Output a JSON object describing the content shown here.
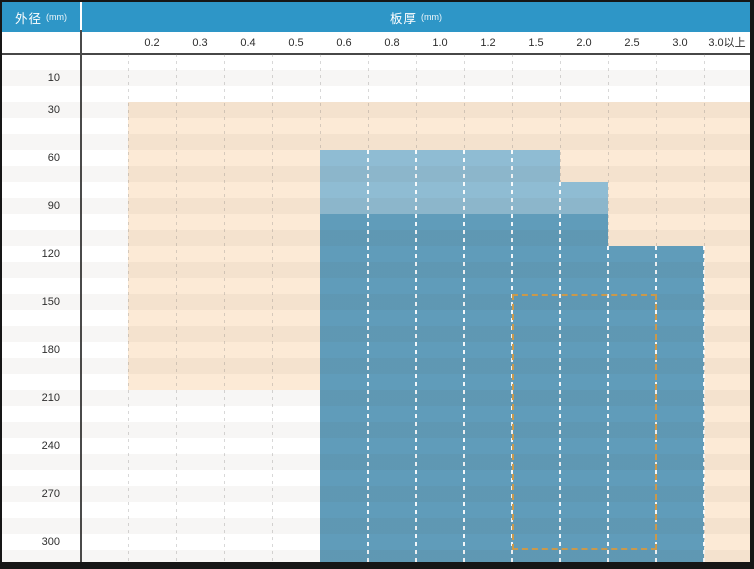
{
  "header": {
    "row_axis": {
      "label": "外径",
      "unit": "(mm)"
    },
    "col_axis": {
      "label": "板厚",
      "unit": "(mm)"
    }
  },
  "columns": [
    "0.2",
    "0.3",
    "0.4",
    "0.5",
    "0.6",
    "0.8",
    "1.0",
    "1.2",
    "1.5",
    "2.0",
    "2.5",
    "3.0",
    "3.0以上"
  ],
  "row_labels": [
    {
      "text": "10",
      "row": 2
    },
    {
      "text": "30",
      "row": 4
    },
    {
      "text": "60",
      "row": 7
    },
    {
      "text": "90",
      "row": 10
    },
    {
      "text": "120",
      "row": 13
    },
    {
      "text": "150",
      "row": 16
    },
    {
      "text": "180",
      "row": 19
    },
    {
      "text": "210",
      "row": 22
    },
    {
      "text": "240",
      "row": 25
    },
    {
      "text": "270",
      "row": 28
    },
    {
      "text": "300",
      "row": 31
    }
  ],
  "colors": {
    "header_bg": "#2e96c7",
    "extended_orange": "#fcead6",
    "available_light_blue": "#8fbcd3",
    "available_dark_blue": "#609cba",
    "dashed_outline": "#c9994c",
    "grid_dash_gray": "#d9d9d9",
    "zebra_gray": "#f6f6f6",
    "frame_black": "#161616"
  },
  "chart_data": {
    "type": "heatmap",
    "title": "",
    "x_axis": {
      "title": "板厚 (mm)",
      "ticks": [
        "0.2",
        "0.3",
        "0.4",
        "0.5",
        "0.6",
        "0.8",
        "1.0",
        "1.2",
        "1.5",
        "2.0",
        "2.5",
        "3.0",
        "3.0以上"
      ]
    },
    "y_axis": {
      "title": "外径 (mm)",
      "ticks": [
        "10",
        "30",
        "60",
        "90",
        "120",
        "150",
        "180",
        "210",
        "240",
        "270",
        "300"
      ]
    },
    "grid": {
      "cols": 13,
      "rows": 32,
      "row_step_mm": 10,
      "legend": "none",
      "gridlines": "vertical-dashed"
    },
    "regions": [
      {
        "name": "extended-range-orange",
        "fill": "#fcead6",
        "desc": "板厚 0.2〜3.0以上 × 外径 30〜200（3.0以上の列は外径 30〜310 まで）",
        "rects": [
          {
            "c0": 0,
            "c1": 13,
            "r0": 3,
            "r1": 21
          },
          {
            "c0": 12,
            "c1": 13,
            "r0": 21,
            "r1": 32
          }
        ]
      },
      {
        "name": "available-range-light-blue",
        "fill": "#8fbcd3",
        "desc": "板厚 0.6〜1.5 × 外径 60〜90 ／ 板厚 2.0 × 外径 80〜90",
        "rects": [
          {
            "c0": 4,
            "c1": 9,
            "r0": 6,
            "r1": 10
          },
          {
            "c0": 9,
            "c1": 10,
            "r0": 8,
            "r1": 10
          }
        ]
      },
      {
        "name": "available-range-dark-blue",
        "fill": "#609cba",
        "desc": "板厚 0.6〜2.0 × 外径 100〜310 ／ 板厚 2.5〜3.0 × 外径 120〜310",
        "rects": [
          {
            "c0": 4,
            "c1": 10,
            "r0": 10,
            "r1": 32
          },
          {
            "c0": 10,
            "c1": 12,
            "r0": 12,
            "r1": 32
          }
        ]
      }
    ],
    "dashed_outline": {
      "name": "dashed-highlight-area",
      "stroke": "#c9994c",
      "rect": {
        "c0": 8,
        "c1": 11,
        "r0": 15,
        "r1": 31
      },
      "desc": "板厚 1.5〜2.5 × 外径 150〜300"
    },
    "white_grid_dashes": [
      {
        "c": 5,
        "r": 6
      },
      {
        "c": 6,
        "r": 6
      },
      {
        "c": 7,
        "r": 6
      },
      {
        "c": 8,
        "r": 6
      },
      {
        "c": 9,
        "r": 8
      },
      {
        "c": 10,
        "r": 12
      },
      {
        "c": 11,
        "r": 12
      },
      {
        "c": 12,
        "r": 12
      }
    ],
    "gray_grid_cols": [
      0,
      1,
      2,
      3,
      4,
      5,
      6,
      7,
      8,
      9,
      10,
      11,
      12
    ]
  }
}
